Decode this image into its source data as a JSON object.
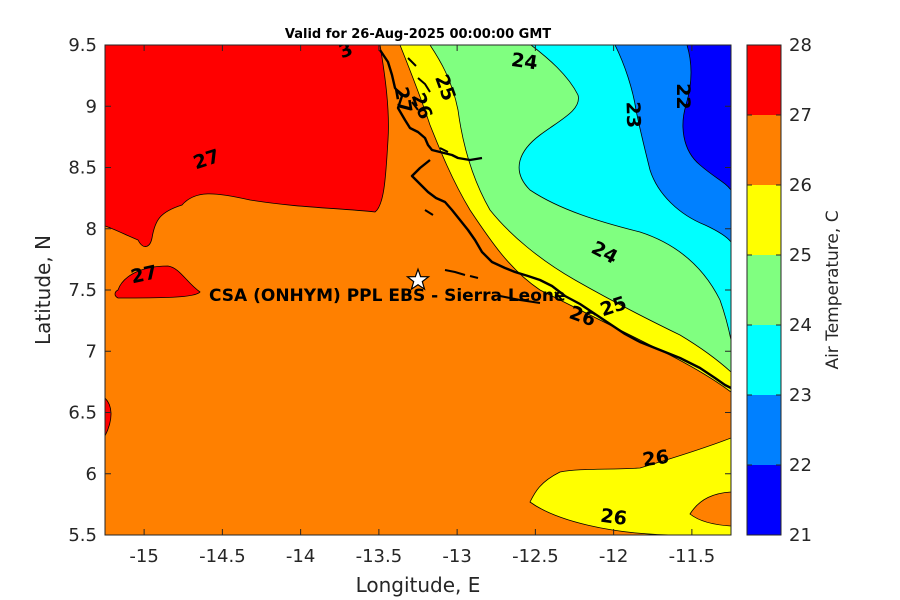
{
  "title": "Valid for 26-Aug-2025 00:00:00 GMT",
  "chart_data": {
    "type": "contour-map",
    "xlabel": "Longitude, E",
    "ylabel": "Latitude, N",
    "xlim": [
      -15.25,
      -11.25
    ],
    "ylim": [
      5.5,
      9.5
    ],
    "xticks": [
      -15,
      -14.5,
      -14,
      -13.5,
      -13,
      -12.5,
      -12,
      -11.5
    ],
    "yticks": [
      5.5,
      6,
      6.5,
      7,
      7.5,
      8,
      8.5,
      9,
      9.5
    ],
    "xtick_labels": [
      "-15",
      "-14.5",
      "-14",
      "-13.5",
      "-13",
      "-12.5",
      "-12",
      "-11.5"
    ],
    "ytick_labels": [
      "5.5",
      "6",
      "6.5",
      "7",
      "7.5",
      "8",
      "8.5",
      "9",
      "9.5"
    ],
    "grid": false,
    "colorbar": {
      "label": "Air Temperature, C",
      "levels": [
        21,
        22,
        23,
        24,
        25,
        26,
        27,
        28
      ],
      "tick_labels": [
        "21",
        "22",
        "23",
        "24",
        "25",
        "26",
        "27",
        "28"
      ],
      "colors": [
        "#0000ff",
        "#0080ff",
        "#00ffff",
        "#80ff80",
        "#ffff00",
        "#ff8000",
        "#ff0000",
        "#800000"
      ]
    },
    "contour_labels": [
      {
        "text": "27",
        "lon": -14.6,
        "lat": 8.56
      },
      {
        "text": "27",
        "lon": -15.0,
        "lat": 7.62
      },
      {
        "text": "3",
        "lon": -13.71,
        "lat": 9.45
      },
      {
        "text": "27",
        "lon": -13.35,
        "lat": 9.05
      },
      {
        "text": "26",
        "lon": -13.23,
        "lat": 9.0
      },
      {
        "text": "25",
        "lon": -13.08,
        "lat": 9.15
      },
      {
        "text": "24",
        "lon": -12.57,
        "lat": 9.36
      },
      {
        "text": "23",
        "lon": -11.88,
        "lat": 8.93
      },
      {
        "text": "22",
        "lon": -11.56,
        "lat": 9.08
      },
      {
        "text": "24",
        "lon": -12.06,
        "lat": 7.8
      },
      {
        "text": "25",
        "lon": -12.0,
        "lat": 7.36
      },
      {
        "text": "26",
        "lon": -12.2,
        "lat": 7.28
      },
      {
        "text": "26",
        "lon": -11.73,
        "lat": 6.12
      },
      {
        "text": "26",
        "lon": -12.0,
        "lat": 5.64
      }
    ],
    "site": {
      "name": "CSA (ONHYM) PPL EBS  - Sierra Leone",
      "lon": -13.25,
      "lat": 7.58
    }
  }
}
